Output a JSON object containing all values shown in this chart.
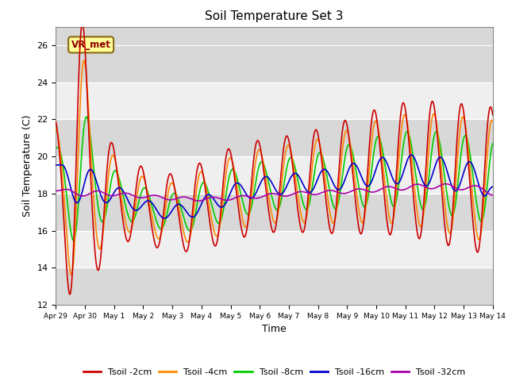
{
  "title": "Soil Temperature Set 3",
  "xlabel": "Time",
  "ylabel": "Soil Temperature (C)",
  "ylim": [
    12,
    27
  ],
  "yticks": [
    12,
    14,
    16,
    18,
    20,
    22,
    24,
    26
  ],
  "colors": {
    "tsoil_2cm": "#cc0000",
    "tsoil_4cm": "#ff8800",
    "tsoil_8cm": "#00cc00",
    "tsoil_16cm": "#0000cc",
    "tsoil_32cm": "#aa00aa"
  },
  "legend_labels": [
    "Tsoil -2cm",
    "Tsoil -4cm",
    "Tsoil -8cm",
    "Tsoil -16cm",
    "Tsoil -32cm"
  ],
  "annotation_text": "VR_met",
  "xtick_labels": [
    "Apr 29",
    "Apr 30",
    "May 1",
    "May 2",
    "May 3",
    "May 4",
    "May 5",
    "May 6",
    "May 7",
    "May 8",
    "May 9",
    "May 10",
    "May 11",
    "May 12",
    "May 13",
    "May 14"
  ],
  "num_points": 720,
  "time_days": 15.0
}
